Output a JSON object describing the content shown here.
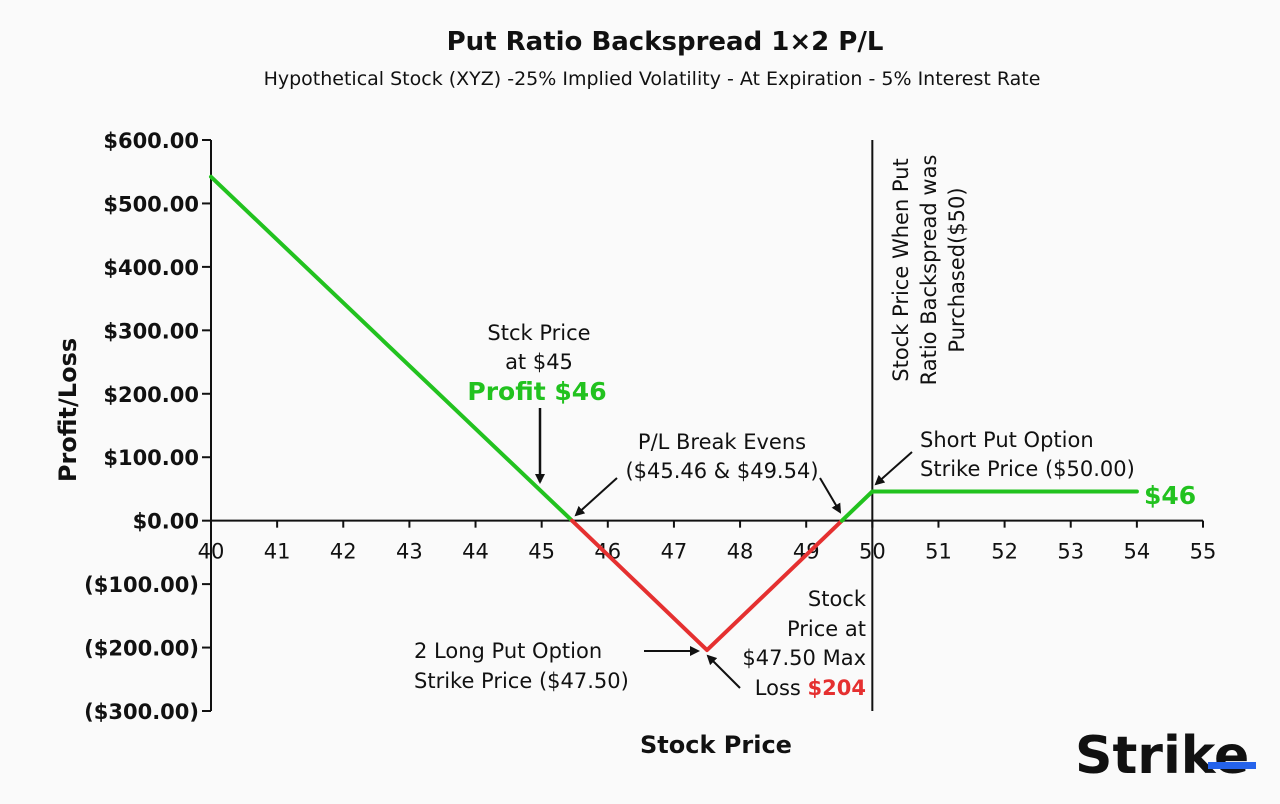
{
  "chart_data": {
    "type": "line",
    "title": "Put Ratio Backspread 1×2 P/L",
    "subtitle": "Hypothetical Stock (XYZ) -25% Implied Volatility - At Expiration - 5% Interest Rate",
    "xlabel": "Stock Price",
    "ylabel": "Profit/Loss",
    "xlim": [
      40,
      55
    ],
    "ylim": [
      -300,
      600
    ],
    "x_ticks": [
      40,
      41,
      42,
      43,
      44,
      45,
      46,
      47,
      48,
      49,
      50,
      51,
      52,
      53,
      54,
      55
    ],
    "x_tick_labels": [
      "40",
      "41",
      "42",
      "43",
      "44",
      "45",
      "46",
      "47",
      "48",
      "49",
      "50",
      "51",
      "52",
      "53",
      "54",
      "55"
    ],
    "y_ticks": [
      600,
      500,
      400,
      300,
      200,
      100,
      0,
      -100,
      -200,
      -300
    ],
    "y_tick_labels": [
      "$600.00",
      "$500.00",
      "$400.00",
      "$300.00",
      "$200.00",
      "$100.00",
      "$0.00",
      "($100.00)",
      "($200.00)",
      "($300.00)"
    ],
    "segments": [
      {
        "color": "#22c21f",
        "points": [
          [
            40,
            542
          ],
          [
            45.46,
            0
          ]
        ]
      },
      {
        "color": "#e53030",
        "points": [
          [
            45.46,
            0
          ],
          [
            47.5,
            -204
          ],
          [
            49.54,
            0
          ]
        ]
      },
      {
        "color": "#22c21f",
        "points": [
          [
            49.54,
            0
          ],
          [
            50,
            46
          ],
          [
            54,
            46
          ]
        ]
      }
    ],
    "vline_x": 50,
    "grid": false,
    "annotations": {
      "stock45_l1": "Stck Price",
      "stock45_l2": "at $45",
      "profit46": "Profit $46",
      "breakeven_l1": "P/L Break Evens",
      "breakeven_l2": "($45.46 & $49.54)",
      "shortput_l1": "Short Put Option",
      "shortput_l2": "Strike Price ($50.00)",
      "right_value": "$46",
      "longput_l1": "2 Long Put Option",
      "longput_l2": "Strike Price ($47.50)",
      "maxloss_l1": "Stock",
      "maxloss_l2": "Price at",
      "maxloss_l3": "$47.50 Max",
      "maxloss_l4": "Loss ",
      "maxloss_value": "$204",
      "vline_l1": "Stock Price When Put",
      "vline_l2": "Ratio Backspread was",
      "vline_l3": "Purchased($50)"
    }
  },
  "brand": {
    "logo_text": "Strike"
  },
  "colors": {
    "profit": "#22c21f",
    "loss": "#e53030",
    "axis": "#111111",
    "accent": "#2563eb"
  }
}
